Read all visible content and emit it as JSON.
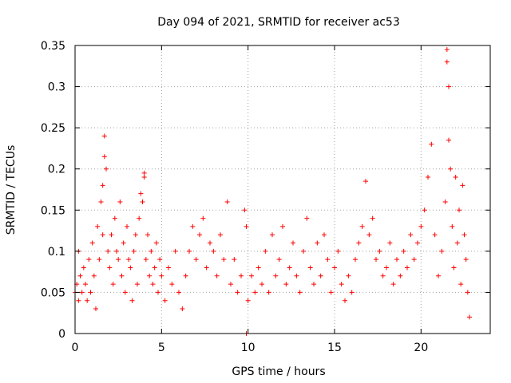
{
  "chart_data": {
    "type": "scatter",
    "title": "Day 094 of 2021, SRMTID for receiver ac53",
    "xlabel": "GPS time / hours",
    "ylabel": "SRMTID / TECUs",
    "xlim": [
      0,
      24
    ],
    "ylim": [
      0,
      0.35
    ],
    "xticks": [
      0,
      5,
      10,
      15,
      20
    ],
    "xtick_labels": [
      "0",
      "5",
      "10",
      "15",
      "20"
    ],
    "yticks": [
      0,
      0.05,
      0.1,
      0.15,
      0.2,
      0.25,
      0.3,
      0.35
    ],
    "ytick_labels": [
      "0",
      "0.05",
      "0.1",
      "0.15",
      "0.2",
      "0.25",
      "0.3",
      "0.35"
    ],
    "grid": true,
    "marker": "+",
    "color": "#ff0000",
    "series": [
      {
        "name": "ac53",
        "points": [
          [
            0.0,
            0.05
          ],
          [
            0.1,
            0.06
          ],
          [
            0.2,
            0.04
          ],
          [
            0.2,
            0.1
          ],
          [
            0.3,
            0.07
          ],
          [
            0.4,
            0.05
          ],
          [
            0.5,
            0.08
          ],
          [
            0.6,
            0.06
          ],
          [
            0.7,
            0.04
          ],
          [
            0.8,
            0.09
          ],
          [
            0.9,
            0.05
          ],
          [
            1.0,
            0.11
          ],
          [
            1.1,
            0.07
          ],
          [
            1.2,
            0.03
          ],
          [
            1.3,
            0.13
          ],
          [
            1.4,
            0.09
          ],
          [
            1.5,
            0.16
          ],
          [
            1.6,
            0.12
          ],
          [
            1.6,
            0.18
          ],
          [
            1.7,
            0.24
          ],
          [
            1.7,
            0.215
          ],
          [
            1.8,
            0.2
          ],
          [
            1.9,
            0.1
          ],
          [
            2.0,
            0.08
          ],
          [
            2.1,
            0.12
          ],
          [
            2.2,
            0.06
          ],
          [
            2.3,
            0.14
          ],
          [
            2.4,
            0.1
          ],
          [
            2.5,
            0.09
          ],
          [
            2.6,
            0.16
          ],
          [
            2.7,
            0.07
          ],
          [
            2.8,
            0.11
          ],
          [
            2.9,
            0.05
          ],
          [
            3.0,
            0.13
          ],
          [
            3.1,
            0.09
          ],
          [
            3.2,
            0.08
          ],
          [
            3.3,
            0.04
          ],
          [
            3.4,
            0.1
          ],
          [
            3.5,
            0.12
          ],
          [
            3.6,
            0.06
          ],
          [
            3.7,
            0.14
          ],
          [
            3.8,
            0.17
          ],
          [
            3.9,
            0.16
          ],
          [
            4.0,
            0.19
          ],
          [
            4.0,
            0.195
          ],
          [
            4.1,
            0.09
          ],
          [
            4.2,
            0.12
          ],
          [
            4.3,
            0.07
          ],
          [
            4.4,
            0.1
          ],
          [
            4.5,
            0.06
          ],
          [
            4.6,
            0.08
          ],
          [
            4.7,
            0.11
          ],
          [
            4.8,
            0.05
          ],
          [
            4.9,
            0.09
          ],
          [
            5.0,
            0.07
          ],
          [
            5.2,
            0.04
          ],
          [
            5.4,
            0.08
          ],
          [
            5.6,
            0.06
          ],
          [
            5.8,
            0.1
          ],
          [
            6.0,
            0.05
          ],
          [
            6.2,
            0.03
          ],
          [
            6.4,
            0.07
          ],
          [
            6.6,
            0.1
          ],
          [
            6.8,
            0.13
          ],
          [
            7.0,
            0.09
          ],
          [
            7.2,
            0.12
          ],
          [
            7.4,
            0.14
          ],
          [
            7.6,
            0.08
          ],
          [
            7.8,
            0.11
          ],
          [
            8.0,
            0.1
          ],
          [
            8.2,
            0.07
          ],
          [
            8.4,
            0.12
          ],
          [
            8.6,
            0.09
          ],
          [
            8.8,
            0.16
          ],
          [
            9.0,
            0.06
          ],
          [
            9.2,
            0.09
          ],
          [
            9.4,
            0.05
          ],
          [
            9.6,
            0.07
          ],
          [
            9.8,
            0.15
          ],
          [
            9.9,
            0.13
          ],
          [
            9.9,
            0.0
          ],
          [
            10.0,
            0.04
          ],
          [
            10.2,
            0.07
          ],
          [
            10.4,
            0.05
          ],
          [
            10.6,
            0.08
          ],
          [
            10.8,
            0.06
          ],
          [
            11.0,
            0.1
          ],
          [
            11.2,
            0.05
          ],
          [
            11.4,
            0.12
          ],
          [
            11.6,
            0.07
          ],
          [
            11.8,
            0.09
          ],
          [
            12.0,
            0.13
          ],
          [
            12.2,
            0.06
          ],
          [
            12.4,
            0.08
          ],
          [
            12.6,
            0.11
          ],
          [
            12.8,
            0.07
          ],
          [
            13.0,
            0.05
          ],
          [
            13.2,
            0.1
          ],
          [
            13.4,
            0.14
          ],
          [
            13.6,
            0.08
          ],
          [
            13.8,
            0.06
          ],
          [
            14.0,
            0.11
          ],
          [
            14.2,
            0.07
          ],
          [
            14.4,
            0.12
          ],
          [
            14.6,
            0.09
          ],
          [
            14.8,
            0.05
          ],
          [
            15.0,
            0.08
          ],
          [
            15.2,
            0.1
          ],
          [
            15.4,
            0.06
          ],
          [
            15.6,
            0.04
          ],
          [
            15.8,
            0.07
          ],
          [
            16.0,
            0.05
          ],
          [
            16.2,
            0.09
          ],
          [
            16.4,
            0.11
          ],
          [
            16.6,
            0.13
          ],
          [
            16.8,
            0.185
          ],
          [
            17.0,
            0.12
          ],
          [
            17.2,
            0.14
          ],
          [
            17.4,
            0.09
          ],
          [
            17.6,
            0.1
          ],
          [
            17.8,
            0.07
          ],
          [
            18.0,
            0.08
          ],
          [
            18.2,
            0.11
          ],
          [
            18.4,
            0.06
          ],
          [
            18.6,
            0.09
          ],
          [
            18.8,
            0.07
          ],
          [
            19.0,
            0.1
          ],
          [
            19.2,
            0.08
          ],
          [
            19.4,
            0.12
          ],
          [
            19.6,
            0.09
          ],
          [
            19.8,
            0.11
          ],
          [
            20.0,
            0.13
          ],
          [
            20.2,
            0.15
          ],
          [
            20.4,
            0.19
          ],
          [
            20.6,
            0.23
          ],
          [
            20.8,
            0.12
          ],
          [
            21.0,
            0.07
          ],
          [
            21.2,
            0.1
          ],
          [
            21.4,
            0.16
          ],
          [
            21.5,
            0.345
          ],
          [
            21.5,
            0.33
          ],
          [
            21.6,
            0.3
          ],
          [
            21.6,
            0.235
          ],
          [
            21.7,
            0.2
          ],
          [
            21.8,
            0.13
          ],
          [
            21.9,
            0.08
          ],
          [
            22.0,
            0.19
          ],
          [
            22.1,
            0.11
          ],
          [
            22.2,
            0.15
          ],
          [
            22.3,
            0.06
          ],
          [
            22.4,
            0.18
          ],
          [
            22.5,
            0.12
          ],
          [
            22.6,
            0.09
          ],
          [
            22.7,
            0.05
          ],
          [
            22.8,
            0.02
          ]
        ]
      }
    ]
  }
}
